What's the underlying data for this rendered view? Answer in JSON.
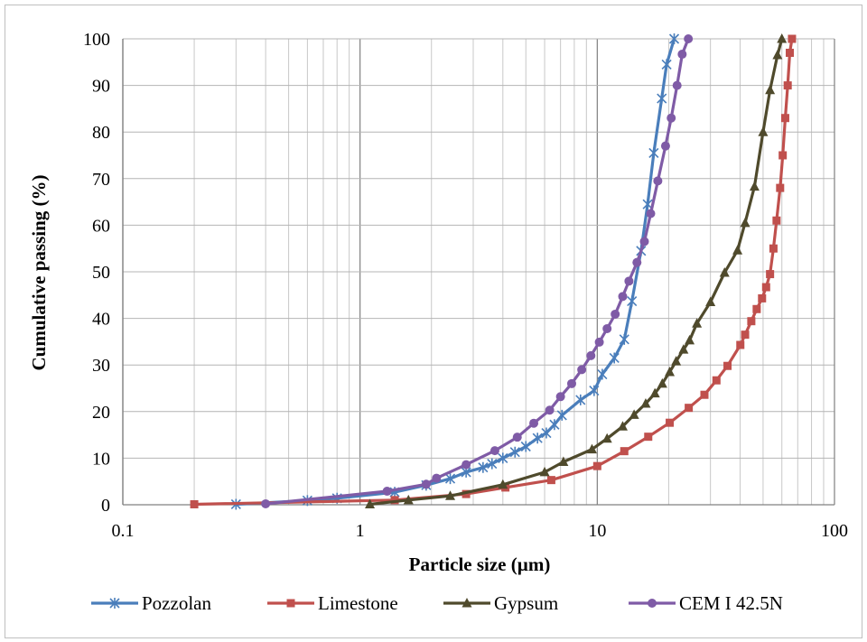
{
  "chart_data": {
    "type": "line",
    "xscale": "log",
    "xlim": [
      0.1,
      100
    ],
    "ylim": [
      0,
      100
    ],
    "xlabel": "Particle size (µm)",
    "ylabel": "Cumulative passing (%)",
    "xticks": [
      "0.1",
      "1",
      "10",
      "100"
    ],
    "yticks": [
      "0",
      "10",
      "20",
      "30",
      "40",
      "50",
      "60",
      "70",
      "80",
      "90",
      "100"
    ],
    "grid": true,
    "legend_position": "bottom",
    "series": [
      {
        "name": "Pozzolan",
        "color": "#4a7ebb",
        "marker": "asterisk",
        "points": [
          [
            0.3,
            0.1
          ],
          [
            0.6,
            0.9
          ],
          [
            0.8,
            1.4
          ],
          [
            1.4,
            2.7
          ],
          [
            1.9,
            4.2
          ],
          [
            2.4,
            5.6
          ],
          [
            2.8,
            7.0
          ],
          [
            3.3,
            8.0
          ],
          [
            3.6,
            8.8
          ],
          [
            4.0,
            10.0
          ],
          [
            4.5,
            11.3
          ],
          [
            5.0,
            12.5
          ],
          [
            5.6,
            14.3
          ],
          [
            6.1,
            15.4
          ],
          [
            6.6,
            17.2
          ],
          [
            7.1,
            19.2
          ],
          [
            8.5,
            22.5
          ],
          [
            9.7,
            24.5
          ],
          [
            10.5,
            28.0
          ],
          [
            11.8,
            31.5
          ],
          [
            13.0,
            35.5
          ],
          [
            14.0,
            43.7
          ],
          [
            15.3,
            54.5
          ],
          [
            16.3,
            64.5
          ],
          [
            17.3,
            75.5
          ],
          [
            18.7,
            87.2
          ],
          [
            19.6,
            94.5
          ],
          [
            21.1,
            100
          ]
        ]
      },
      {
        "name": "Limestone",
        "color": "#c0504d",
        "marker": "square",
        "points": [
          [
            0.2,
            0.1
          ],
          [
            1.4,
            1.0
          ],
          [
            2.8,
            2.3
          ],
          [
            4.1,
            3.7
          ],
          [
            6.4,
            5.3
          ],
          [
            10.0,
            8.3
          ],
          [
            13.0,
            11.5
          ],
          [
            16.4,
            14.6
          ],
          [
            20.2,
            17.6
          ],
          [
            24.3,
            20.8
          ],
          [
            28.3,
            23.6
          ],
          [
            31.8,
            26.7
          ],
          [
            35.4,
            29.8
          ],
          [
            40.1,
            34.3
          ],
          [
            42.0,
            36.5
          ],
          [
            44.6,
            39.4
          ],
          [
            47.0,
            42.0
          ],
          [
            49.5,
            44.3
          ],
          [
            51.5,
            46.7
          ],
          [
            53.5,
            49.5
          ],
          [
            55.3,
            55.0
          ],
          [
            57.0,
            61.0
          ],
          [
            59.0,
            68.0
          ],
          [
            60.5,
            75.0
          ],
          [
            62.0,
            83.0
          ],
          [
            63.5,
            90.0
          ],
          [
            64.8,
            97.0
          ],
          [
            66.2,
            100
          ]
        ]
      },
      {
        "name": "Gypsum",
        "color": "#4f4a2c",
        "marker": "triangle",
        "points": [
          [
            1.1,
            0.1
          ],
          [
            1.6,
            1.0
          ],
          [
            2.4,
            1.9
          ],
          [
            4.0,
            4.3
          ],
          [
            6.0,
            7.0
          ],
          [
            7.2,
            9.2
          ],
          [
            9.5,
            11.9
          ],
          [
            11.0,
            14.2
          ],
          [
            12.8,
            16.8
          ],
          [
            14.3,
            19.3
          ],
          [
            16.0,
            21.7
          ],
          [
            17.5,
            23.9
          ],
          [
            18.8,
            26.0
          ],
          [
            20.2,
            28.5
          ],
          [
            21.5,
            30.8
          ],
          [
            23.1,
            33.3
          ],
          [
            24.5,
            35.3
          ],
          [
            26.3,
            38.9
          ],
          [
            30.0,
            43.5
          ],
          [
            34.4,
            49.8
          ],
          [
            39.0,
            54.6
          ],
          [
            42.0,
            60.5
          ],
          [
            46.0,
            68.3
          ],
          [
            50.0,
            80.0
          ],
          [
            53.5,
            89.0
          ],
          [
            57.5,
            96.5
          ],
          [
            60.0,
            100
          ]
        ]
      },
      {
        "name": "CEM I 42.5N",
        "color": "#7f5ba6",
        "marker": "circle",
        "points": [
          [
            0.4,
            0.2
          ],
          [
            1.3,
            2.9
          ],
          [
            1.9,
            4.4
          ],
          [
            2.1,
            5.7
          ],
          [
            2.8,
            8.6
          ],
          [
            3.7,
            11.6
          ],
          [
            4.6,
            14.5
          ],
          [
            5.4,
            17.5
          ],
          [
            6.3,
            20.3
          ],
          [
            7.0,
            23.2
          ],
          [
            7.8,
            26.0
          ],
          [
            8.6,
            29.0
          ],
          [
            9.4,
            32.0
          ],
          [
            10.2,
            34.9
          ],
          [
            11.0,
            37.8
          ],
          [
            11.9,
            40.9
          ],
          [
            12.8,
            44.7
          ],
          [
            13.6,
            48.0
          ],
          [
            14.7,
            52.0
          ],
          [
            15.8,
            56.5
          ],
          [
            16.8,
            62.5
          ],
          [
            18.0,
            69.5
          ],
          [
            19.4,
            77.0
          ],
          [
            20.5,
            83.0
          ],
          [
            21.7,
            90.0
          ],
          [
            22.8,
            96.7
          ],
          [
            24.2,
            100
          ]
        ]
      }
    ]
  }
}
